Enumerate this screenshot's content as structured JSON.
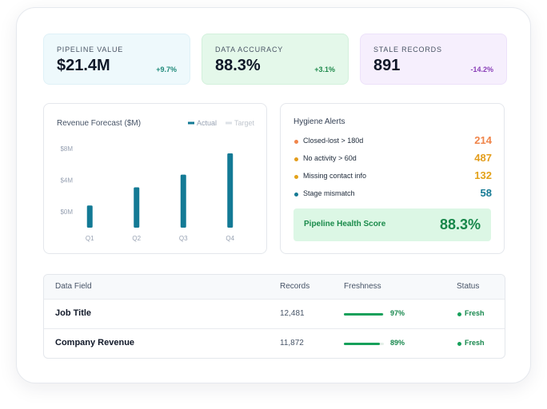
{
  "kpis": [
    {
      "label": "PIPELINE VALUE",
      "value": "$21.4M",
      "change": "+9.7%",
      "color": "#1f8a7a",
      "bg": "#eef9fc",
      "border": "#dff1f7"
    },
    {
      "label": "DATA ACCURACY",
      "value": "88.3%",
      "change": "+3.1%",
      "color": "#1f8a4c",
      "bg": "#e4f8ea",
      "border": "#d3f1dc"
    },
    {
      "label": "STALE RECORDS",
      "value": "891",
      "change": "-14.2%",
      "color": "#8a3fb8",
      "bg": "#f6effd",
      "border": "#ede2fa"
    }
  ],
  "revenue_chart": {
    "type": "bar",
    "title": "Revenue Forecast ($M)",
    "legend": [
      {
        "name": "Actual",
        "color": "#137a95"
      },
      {
        "name": "Target",
        "color": "#dde2e7"
      }
    ],
    "categories": [
      "Q1",
      "Q2",
      "Q3",
      "Q4"
    ],
    "values": [
      0.8,
      3.1,
      4.7,
      7.4
    ],
    "color": "#137a95",
    "ylim": [
      -2,
      8
    ],
    "yticks": [
      {
        "value": 0,
        "label": "$0M"
      },
      {
        "value": 4,
        "label": "$4M"
      },
      {
        "value": 8,
        "label": "$8M"
      }
    ]
  },
  "alerts": {
    "title": "Hygiene Alerts",
    "items": [
      {
        "label": "Closed-lost > 180d",
        "count": 214,
        "color": "#f0854a"
      },
      {
        "label": "No activity > 60d",
        "count": 487,
        "color": "#e39d1c"
      },
      {
        "label": "Missing contact info",
        "count": 132,
        "color": "#e3a21a"
      },
      {
        "label": "Stage mismatch",
        "count": 58,
        "color": "#157a94"
      }
    ],
    "health": {
      "label": "Pipeline Health Score",
      "value": "88.3%"
    }
  },
  "table": {
    "columns": [
      "Data Field",
      "Records",
      "Freshness",
      "Status"
    ],
    "rows": [
      {
        "field": "Job Title",
        "records": "12,481",
        "freshness": {
          "value": 97,
          "label": "97%"
        },
        "status": "Fresh"
      },
      {
        "field": "Company Revenue",
        "records": "11,872",
        "freshness": {
          "value": 89,
          "label": "89%"
        },
        "status": "Fresh"
      }
    ]
  }
}
